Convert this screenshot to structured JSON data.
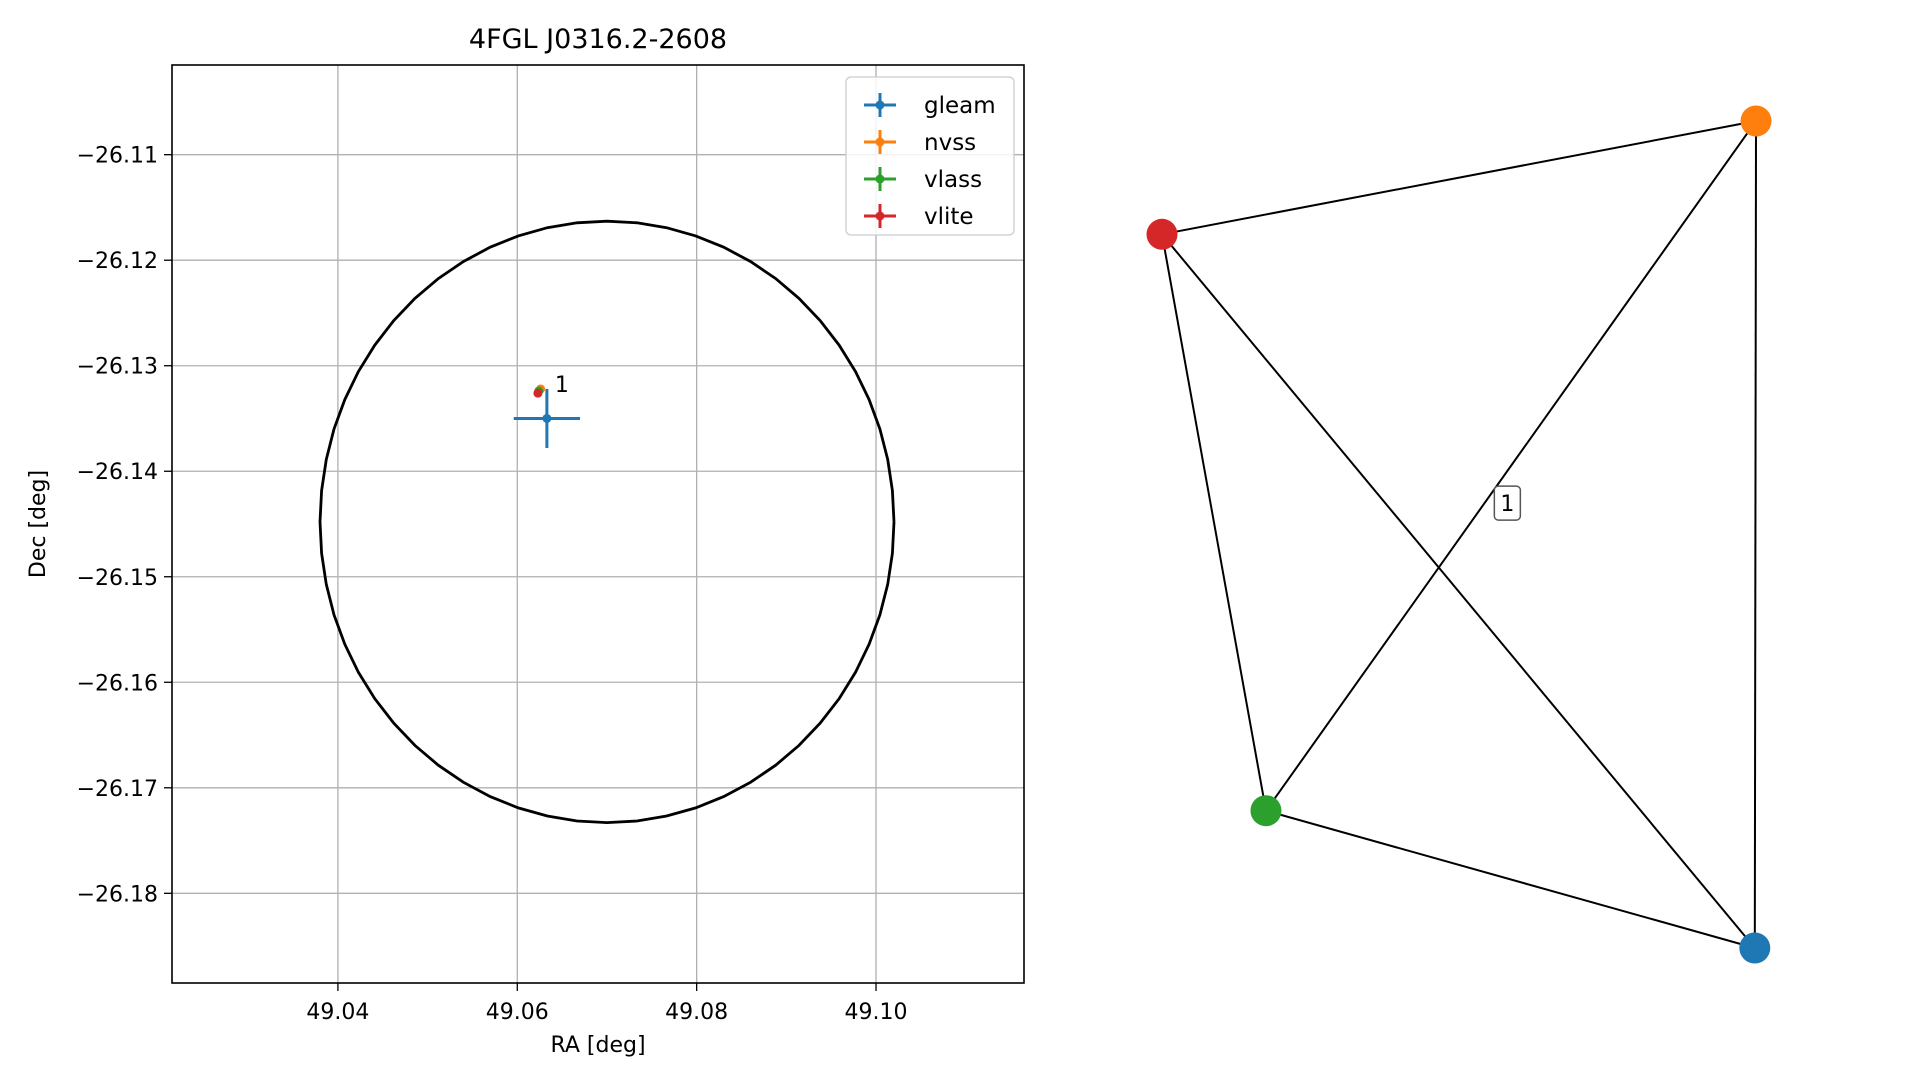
{
  "chart_data": [
    {
      "type": "scatter",
      "title": "4FGL J0316.2-2608",
      "xlabel": "RA [deg]",
      "ylabel": "Dec [deg]",
      "xlim": [
        49.0215,
        49.1165
      ],
      "ylim": [
        -26.1885,
        -26.1015
      ],
      "xticks": [
        49.04,
        49.06,
        49.08,
        49.1
      ],
      "xtick_labels": [
        "49.04",
        "49.06",
        "49.08",
        "49.10"
      ],
      "yticks": [
        -26.11,
        -26.12,
        -26.13,
        -26.14,
        -26.15,
        -26.16,
        -26.17,
        -26.18
      ],
      "ytick_labels": [
        "−26.11",
        "−26.12",
        "−26.13",
        "−26.14",
        "−26.15",
        "−26.16",
        "−26.17",
        "−26.18"
      ],
      "grid": true,
      "legend_position": "top-right",
      "series": [
        {
          "name": "gleam",
          "color": "#1f77b4",
          "x": 49.0633,
          "y": -26.135,
          "xerr": 0.0037,
          "yerr": 0.0028
        },
        {
          "name": "nvss",
          "color": "#ff7f0e",
          "x": 49.0626,
          "y": -26.1322,
          "xerr": 0.0002,
          "yerr": 0.0002
        },
        {
          "name": "vlass",
          "color": "#2ca02c",
          "x": 49.0624,
          "y": -26.1324,
          "xerr": 0.0001,
          "yerr": 0.0001
        },
        {
          "name": "vlite",
          "color": "#d62728",
          "x": 49.0623,
          "y": -26.1326,
          "xerr": 0.0002,
          "yerr": 0.0002
        }
      ],
      "annotation": {
        "text": "1",
        "x": 49.0633,
        "y": -26.1322
      },
      "circle": {
        "center_x": 49.07,
        "center_y": -26.1448,
        "radius_x": 0.032,
        "radius_y": 0.0285,
        "color": "#000000"
      }
    },
    {
      "type": "network",
      "nodes": [
        {
          "id": "gleam",
          "color": "#1f77b4",
          "x": 0.975,
          "y": 0.0
        },
        {
          "id": "nvss",
          "color": "#ff7f0e",
          "x": 0.977,
          "y": 1.0
        },
        {
          "id": "vlass",
          "color": "#2ca02c",
          "x": 0.171,
          "y": 0.166
        },
        {
          "id": "vlite",
          "color": "#d62728",
          "x": 0.0,
          "y": 0.863
        }
      ],
      "edges": [
        [
          "vlite",
          "nvss"
        ],
        [
          "vlite",
          "vlass"
        ],
        [
          "vlite",
          "gleam"
        ],
        [
          "nvss",
          "vlass"
        ],
        [
          "nvss",
          "gleam"
        ],
        [
          "vlass",
          "gleam"
        ]
      ],
      "edge_label": {
        "text": "1",
        "x": 0.568,
        "y": 0.538
      }
    }
  ]
}
